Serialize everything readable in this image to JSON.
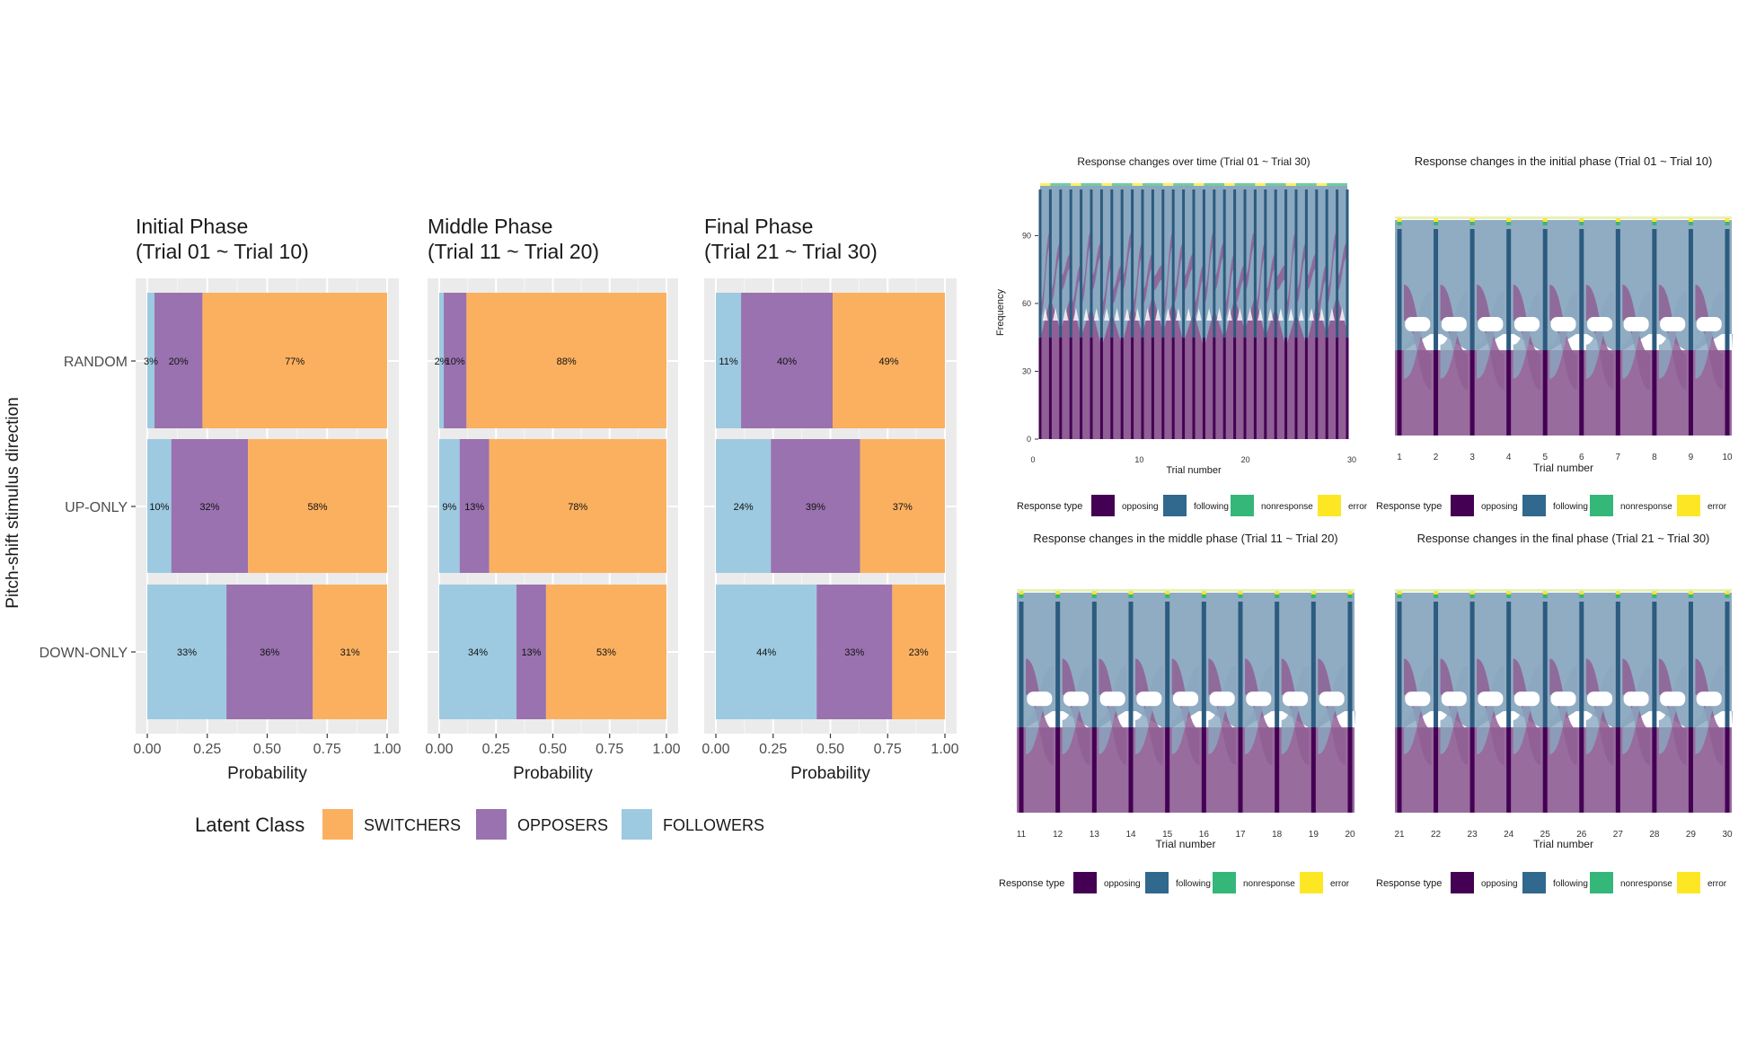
{
  "left_figure": {
    "ylabel": "Pitch-shift stimulus direction",
    "xlabel": "Probability",
    "legend_title": "Latent Class",
    "colors": {
      "SWITCHERS": "#fbb060",
      "OPPOSERS": "#9a72af",
      "FOLLOWERS": "#9dcae1",
      "panel_bg": "#ebebeb"
    }
  },
  "chart_data": [
    {
      "type": "bar",
      "orientation": "horizontal-stacked",
      "title_line1": "Initial Phase",
      "title_line2": "(Trial 01 ~ Trial 10)",
      "categories": [
        "RANDOM",
        "UP-ONLY",
        "DOWN-ONLY"
      ],
      "series": [
        {
          "name": "FOLLOWERS",
          "values": [
            0.03,
            0.1,
            0.33
          ],
          "labels": [
            "3%",
            "10%",
            "33%"
          ]
        },
        {
          "name": "OPPOSERS",
          "values": [
            0.2,
            0.32,
            0.36
          ],
          "labels": [
            "20%",
            "32%",
            "36%"
          ]
        },
        {
          "name": "SWITCHERS",
          "values": [
            0.77,
            0.58,
            0.31
          ],
          "labels": [
            "77%",
            "58%",
            "31%"
          ]
        }
      ],
      "xlim": [
        0,
        1
      ],
      "xticks": [
        "0.00",
        "0.25",
        "0.50",
        "0.75",
        "1.00"
      ],
      "xlabel": "Probability",
      "ylabel": "Pitch-shift stimulus direction"
    },
    {
      "type": "bar",
      "orientation": "horizontal-stacked",
      "title_line1": "Middle Phase",
      "title_line2": "(Trial 11 ~ Trial 20)",
      "categories": [
        "RANDOM",
        "UP-ONLY",
        "DOWN-ONLY"
      ],
      "series": [
        {
          "name": "FOLLOWERS",
          "values": [
            0.02,
            0.09,
            0.34
          ],
          "labels": [
            "2%",
            "9%",
            "34%"
          ]
        },
        {
          "name": "OPPOSERS",
          "values": [
            0.1,
            0.13,
            0.13
          ],
          "labels": [
            "10%",
            "13%",
            "13%"
          ]
        },
        {
          "name": "SWITCHERS",
          "values": [
            0.88,
            0.78,
            0.53
          ],
          "labels": [
            "88%",
            "78%",
            "53%"
          ]
        }
      ],
      "xlim": [
        0,
        1
      ],
      "xticks": [
        "0.00",
        "0.25",
        "0.50",
        "0.75",
        "1.00"
      ],
      "xlabel": "Probability"
    },
    {
      "type": "bar",
      "orientation": "horizontal-stacked",
      "title_line1": "Final Phase",
      "title_line2": "(Trial 21 ~ Trial 30)",
      "categories": [
        "RANDOM",
        "UP-ONLY",
        "DOWN-ONLY"
      ],
      "series": [
        {
          "name": "FOLLOWERS",
          "values": [
            0.11,
            0.24,
            0.44
          ],
          "labels": [
            "11%",
            "24%",
            "44%"
          ]
        },
        {
          "name": "OPPOSERS",
          "values": [
            0.4,
            0.39,
            0.33
          ],
          "labels": [
            "40%",
            "39%",
            "33%"
          ]
        },
        {
          "name": "SWITCHERS",
          "values": [
            0.49,
            0.37,
            0.23
          ],
          "labels": [
            "49%",
            "37%",
            "23%"
          ]
        }
      ],
      "xlim": [
        0,
        1
      ],
      "xticks": [
        "0.00",
        "0.25",
        "0.50",
        "0.75",
        "1.00"
      ],
      "xlabel": "Probability"
    },
    {
      "type": "area",
      "title": "Response changes over time (Trial 01 ~ Trial 30)",
      "xlabel": "Trial number",
      "ylabel": "Frequency",
      "x_range": [
        0,
        30
      ],
      "xticks": [
        "0",
        "10",
        "20",
        "30"
      ],
      "yticks": [
        "0",
        "30",
        "60",
        "90"
      ]
    },
    {
      "type": "area",
      "title": "Response changes in the initial phase (Trial 01 ~ Trial 10)",
      "xlabel": "Trial number",
      "xticks": [
        "1",
        "2",
        "3",
        "4",
        "5",
        "6",
        "7",
        "8",
        "9",
        "10"
      ]
    },
    {
      "type": "area",
      "title": "Response changes in the middle phase (Trial 11 ~ Trial 20)",
      "xlabel": "Trial number",
      "xticks": [
        "11",
        "12",
        "13",
        "14",
        "15",
        "16",
        "17",
        "18",
        "19",
        "20"
      ]
    },
    {
      "type": "area",
      "title": "Response changes in the final phase (Trial 21 ~ Trial 30)",
      "xlabel": "Trial number",
      "xticks": [
        "21",
        "22",
        "23",
        "24",
        "25",
        "26",
        "27",
        "28",
        "29",
        "30"
      ]
    }
  ],
  "right_legend": {
    "title": "Response type",
    "items": [
      {
        "name": "opposing",
        "color": "#440154"
      },
      {
        "name": "following",
        "color": "#31688e"
      },
      {
        "name": "nonresponse",
        "color": "#35b779"
      },
      {
        "name": "error",
        "color": "#fde725"
      }
    ]
  }
}
